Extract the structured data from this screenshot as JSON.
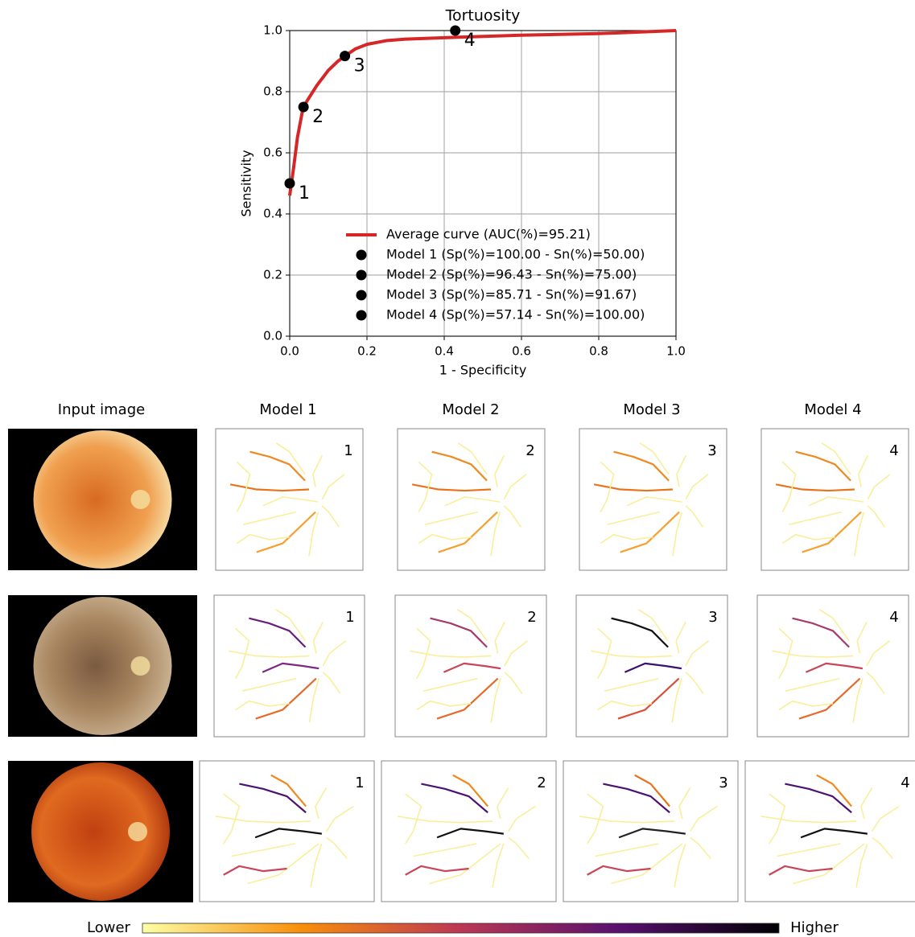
{
  "chart_data": {
    "type": "line",
    "title": "Tortuosity",
    "xlabel": "1 - Specificity",
    "ylabel": "Sensitivity",
    "xlim": [
      0,
      1
    ],
    "ylim": [
      0,
      1
    ],
    "xticks": [
      {
        "value": 0,
        "label": "0.0"
      },
      {
        "value": 0.2,
        "label": "0.2"
      },
      {
        "value": 0.4,
        "label": "0.4"
      },
      {
        "value": 0.6,
        "label": "0.6"
      },
      {
        "value": 0.8,
        "label": "0.8"
      },
      {
        "value": 1,
        "label": "1.0"
      }
    ],
    "yticks": [
      {
        "value": 0,
        "label": "0.0"
      },
      {
        "value": 0.2,
        "label": "0.2"
      },
      {
        "value": 0.4,
        "label": "0.4"
      },
      {
        "value": 0.6,
        "label": "0.6"
      },
      {
        "value": 0.8,
        "label": "0.8"
      },
      {
        "value": 1,
        "label": "1.0"
      }
    ],
    "grid": true,
    "legend": "lower center",
    "series": [
      {
        "name": "Average curve (AUC(%)=95.21)",
        "type": "line",
        "color": "#d62728",
        "x": [
          0,
          0.01,
          0.02,
          0.035,
          0.05,
          0.07,
          0.1,
          0.125,
          0.143,
          0.17,
          0.2,
          0.25,
          0.3,
          0.43,
          0.6,
          0.8,
          1.0
        ],
        "values": [
          0.46,
          0.55,
          0.65,
          0.75,
          0.78,
          0.82,
          0.87,
          0.9,
          0.917,
          0.94,
          0.955,
          0.967,
          0.972,
          0.978,
          0.985,
          0.99,
          1.0
        ]
      },
      {
        "name": "Model 1 (Sp(%)=100.00 - Sn(%)=50.00)",
        "type": "scatter",
        "color": "#000000",
        "point_label": "1",
        "x": [
          0
        ],
        "values": [
          0.5
        ]
      },
      {
        "name": "Model 2 (Sp(%)=96.43 - Sn(%)=75.00)",
        "type": "scatter",
        "color": "#000000",
        "point_label": "2",
        "x": [
          0.0357
        ],
        "values": [
          0.75
        ]
      },
      {
        "name": "Model 3 (Sp(%)=85.71 - Sn(%)=91.67)",
        "type": "scatter",
        "color": "#000000",
        "point_label": "3",
        "x": [
          0.1429
        ],
        "values": [
          0.9167
        ]
      },
      {
        "name": "Model 4 (Sp(%)=57.14 - Sn(%)=100.00)",
        "type": "scatter",
        "color": "#000000",
        "point_label": "4",
        "x": [
          0.4286
        ],
        "values": [
          1.0
        ]
      }
    ]
  },
  "figure": {
    "column_titles": [
      "Input image",
      "Model 1",
      "Model 2",
      "Model 3",
      "Model 4"
    ],
    "panel_labels": [
      "1",
      "2",
      "3",
      "4"
    ],
    "colorbar": {
      "low": "Lower",
      "high": "Higher"
    }
  }
}
